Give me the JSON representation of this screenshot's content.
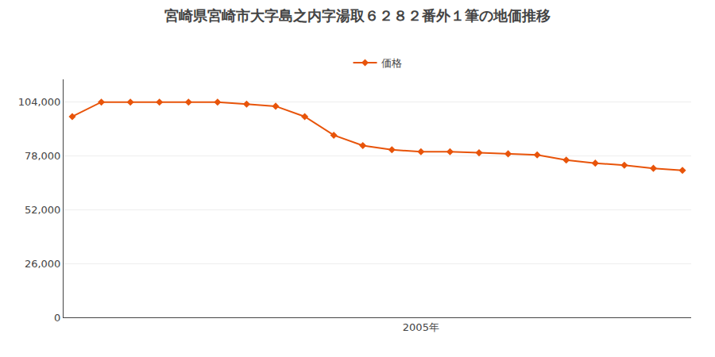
{
  "chart_data": {
    "type": "line",
    "title": "宮崎県宮崎市大字島之内字湯取６２８２番外１筆の地価推移",
    "x": [
      1993,
      1994,
      1995,
      1996,
      1997,
      1998,
      1999,
      2000,
      2001,
      2002,
      2003,
      2004,
      2005,
      2006,
      2007,
      2008,
      2009,
      2010,
      2011,
      2012,
      2013,
      2014
    ],
    "series": [
      {
        "name": "価格",
        "color": "#E8540A",
        "values": [
          97000,
          104000,
          104000,
          104000,
          104000,
          104000,
          103000,
          102000,
          97000,
          88000,
          83000,
          81000,
          80000,
          80000,
          79500,
          79000,
          78500,
          76000,
          74500,
          73500,
          72000,
          71000
        ]
      }
    ],
    "marker": "diamond",
    "xlim": [
      1992.7,
      2014.3
    ],
    "xticks": [
      {
        "value": 2005,
        "label": "2005年"
      }
    ],
    "ylim": [
      0,
      115000
    ],
    "yticks": [
      0,
      {
        "value": 26000,
        "label": "26,000"
      },
      {
        "value": 52000,
        "label": "52,000"
      },
      {
        "value": 78000,
        "label": "78,000"
      },
      {
        "value": 104000,
        "label": "104,000"
      }
    ],
    "grid": true,
    "legend": "top"
  }
}
